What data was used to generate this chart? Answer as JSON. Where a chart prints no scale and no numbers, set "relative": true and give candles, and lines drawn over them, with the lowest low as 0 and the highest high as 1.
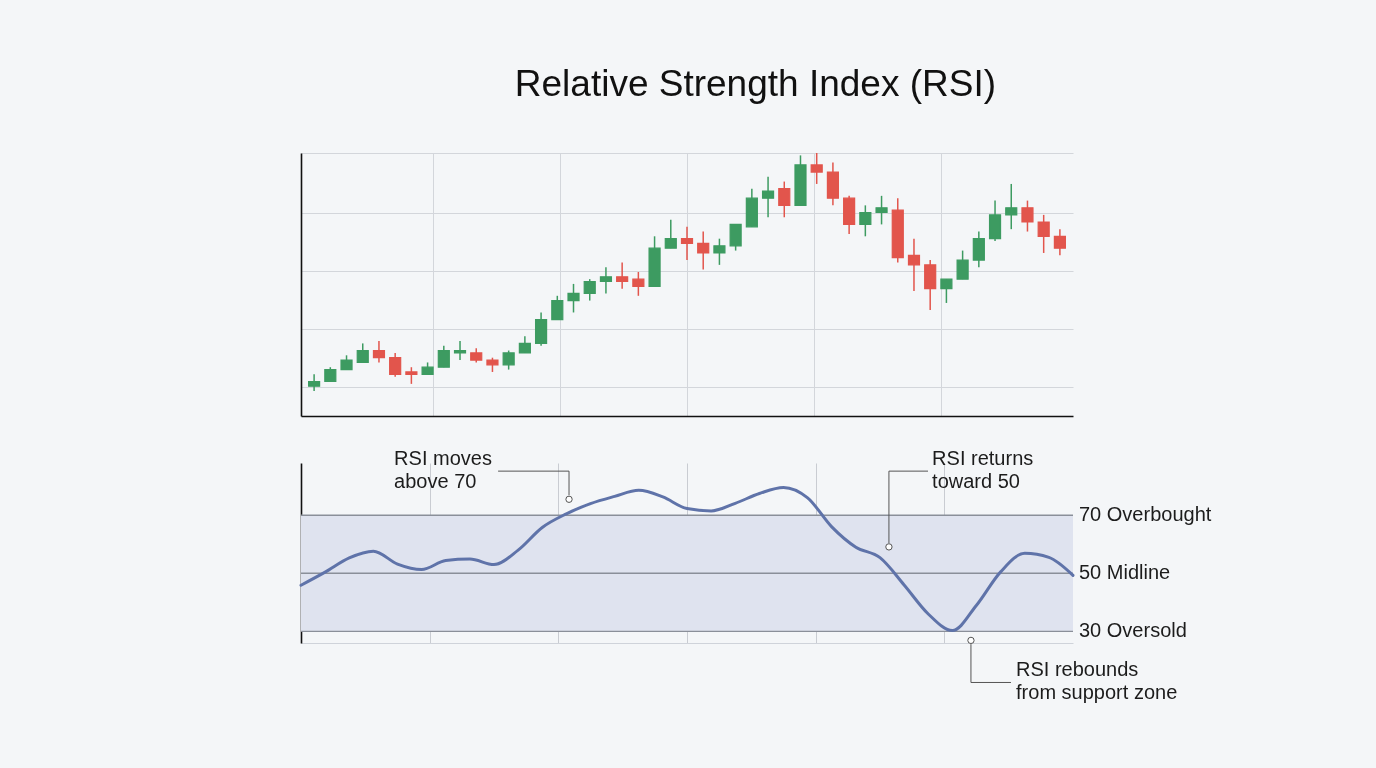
{
  "chart_data": [
    {
      "type": "candlestick",
      "title": "Relative Strength Index (RSI)",
      "relative": true,
      "grid": true,
      "categories": [
        null,
        null,
        null,
        null,
        null,
        null,
        null,
        null,
        null,
        null,
        null,
        null,
        null,
        null,
        null,
        null,
        null,
        null,
        null,
        null,
        null,
        null,
        null,
        null,
        null,
        null,
        null,
        null,
        null,
        null,
        null,
        null,
        null,
        null,
        null,
        null,
        null,
        null,
        null,
        null,
        null,
        null,
        null,
        null,
        null,
        null,
        null
      ],
      "ohlc": [
        [
          0.02,
          0.07,
          0.0,
          0.04
        ],
        [
          0.04,
          0.1,
          0.04,
          0.09
        ],
        [
          0.09,
          0.15,
          0.09,
          0.13
        ],
        [
          0.12,
          0.2,
          0.12,
          0.17
        ],
        [
          0.17,
          0.21,
          0.12,
          0.14
        ],
        [
          0.14,
          0.16,
          0.06,
          0.07
        ],
        [
          0.08,
          0.1,
          0.03,
          0.07
        ],
        [
          0.07,
          0.12,
          0.07,
          0.1
        ],
        [
          0.1,
          0.19,
          0.1,
          0.17
        ],
        [
          0.16,
          0.21,
          0.13,
          0.17
        ],
        [
          0.16,
          0.18,
          0.12,
          0.13
        ],
        [
          0.13,
          0.14,
          0.08,
          0.11
        ],
        [
          0.11,
          0.17,
          0.09,
          0.16
        ],
        [
          0.16,
          0.23,
          0.16,
          0.2
        ],
        [
          0.2,
          0.33,
          0.19,
          0.3
        ],
        [
          0.3,
          0.4,
          0.3,
          0.38
        ],
        [
          0.38,
          0.45,
          0.33,
          0.41
        ],
        [
          0.41,
          0.47,
          0.38,
          0.46
        ],
        [
          0.46,
          0.52,
          0.41,
          0.48
        ],
        [
          0.48,
          0.54,
          0.43,
          0.46
        ],
        [
          0.47,
          0.5,
          0.4,
          0.44
        ],
        [
          0.44,
          0.65,
          0.44,
          0.6
        ],
        [
          0.6,
          0.72,
          0.6,
          0.64
        ],
        [
          0.64,
          0.69,
          0.55,
          0.62
        ],
        [
          0.62,
          0.67,
          0.51,
          0.58
        ],
        [
          0.58,
          0.64,
          0.53,
          0.61
        ],
        [
          0.61,
          0.7,
          0.59,
          0.7
        ],
        [
          0.69,
          0.85,
          0.69,
          0.81
        ],
        [
          0.81,
          0.9,
          0.73,
          0.84
        ],
        [
          0.85,
          0.88,
          0.73,
          0.78
        ],
        [
          0.78,
          0.99,
          0.78,
          0.95
        ],
        [
          0.95,
          1.0,
          0.87,
          0.92
        ],
        [
          0.92,
          0.96,
          0.78,
          0.81
        ],
        [
          0.81,
          0.82,
          0.66,
          0.7
        ],
        [
          0.7,
          0.78,
          0.65,
          0.75
        ],
        [
          0.75,
          0.82,
          0.7,
          0.77
        ],
        [
          0.76,
          0.81,
          0.54,
          0.56
        ],
        [
          0.57,
          0.64,
          0.42,
          0.53
        ],
        [
          0.53,
          0.55,
          0.34,
          0.43
        ],
        [
          0.43,
          0.47,
          0.37,
          0.47
        ],
        [
          0.47,
          0.59,
          0.47,
          0.55
        ],
        [
          0.55,
          0.67,
          0.52,
          0.64
        ],
        [
          0.64,
          0.8,
          0.63,
          0.74
        ],
        [
          0.74,
          0.87,
          0.68,
          0.77
        ],
        [
          0.77,
          0.8,
          0.67,
          0.71
        ],
        [
          0.71,
          0.74,
          0.58,
          0.65
        ],
        [
          0.65,
          0.68,
          0.57,
          0.6
        ]
      ],
      "colors": [
        "#3d9b61",
        "#3d9b61",
        "#3d9b61",
        "#3d9b61",
        "#e2554c",
        "#e2554c",
        "#e2554c",
        "#3d9b61",
        "#3d9b61",
        "#3d9b61",
        "#e2554c",
        "#e2554c",
        "#3d9b61",
        "#3d9b61",
        "#3d9b61",
        "#3d9b61",
        "#3d9b61",
        "#3d9b61",
        "#3d9b61",
        "#e2554c",
        "#e2554c",
        "#3d9b61",
        "#3d9b61",
        "#e2554c",
        "#e2554c",
        "#3d9b61",
        "#3d9b61",
        "#3d9b61",
        "#3d9b61",
        "#e2554c",
        "#3d9b61",
        "#e2554c",
        "#e2554c",
        "#e2554c",
        "#3d9b61",
        "#3d9b61",
        "#e2554c",
        "#e2554c",
        "#e2554c",
        "#3d9b61",
        "#3d9b61",
        "#3d9b61",
        "#3d9b61",
        "#3d9b61",
        "#e2554c",
        "#e2554c",
        "#e2554c"
      ]
    },
    {
      "type": "line",
      "ylim": [
        26,
        88
      ],
      "grid": "x",
      "categories": [
        null,
        null,
        null,
        null,
        null,
        null,
        null,
        null,
        null,
        null,
        null,
        null,
        null,
        null,
        null,
        null,
        null,
        null,
        null,
        null,
        null,
        null,
        null,
        null,
        null,
        null,
        null,
        null,
        null,
        null,
        null,
        null,
        null
      ],
      "series": [
        {
          "color": "#5f73a9",
          "values": [
            45.9,
            50.4,
            55.3,
            57.6,
            53.2,
            51.3,
            54.4,
            54.9,
            53.0,
            58.0,
            65.8,
            70.5,
            74.0,
            76.5,
            78.6,
            76.3,
            72.3,
            71.5,
            74.1,
            77.5,
            79.6,
            76.0,
            66.0,
            59.0,
            55.4,
            46.0,
            36.0,
            30.3,
            39.0,
            50.5,
            56.9,
            55.5,
            49.3
          ]
        }
      ],
      "bands": [
        {
          "axis": "y",
          "from": 30,
          "to": 70,
          "color": "#dfe3ef"
        }
      ],
      "ref_lines": [
        {
          "axis": "y",
          "value": 70,
          "label": "70 Overbought",
          "color": "#8a8f99"
        },
        {
          "axis": "y",
          "value": 50,
          "label": "50 Midline",
          "color": "#8a8f99"
        },
        {
          "axis": "y",
          "value": 30,
          "label": "30 Oversold",
          "color": "#8a8f99"
        }
      ],
      "annotations": [
        "RSI moves above 70",
        "RSI returns toward 50",
        "RSI rebounds from support zone"
      ]
    }
  ]
}
